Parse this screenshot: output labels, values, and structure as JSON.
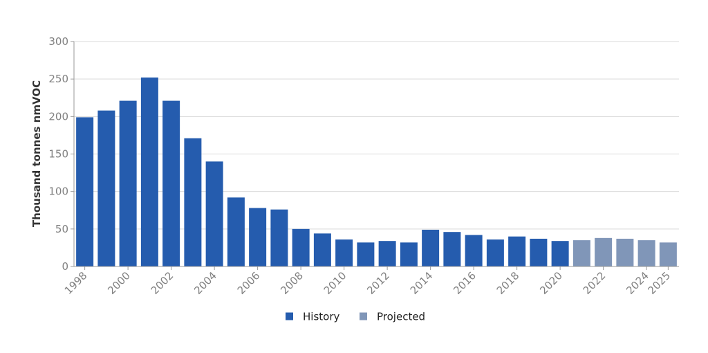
{
  "chart_data": {
    "type": "bar",
    "categories": [
      "1998",
      "1999",
      "2000",
      "2001",
      "2002",
      "2003",
      "2004",
      "2005",
      "2006",
      "2007",
      "2008",
      "2009",
      "2010",
      "2011",
      "2012",
      "2013",
      "2014",
      "2015",
      "2016",
      "2017",
      "2018",
      "2019",
      "2020",
      "2021",
      "2022",
      "2023",
      "2024",
      "2025"
    ],
    "x_tick_labels": [
      "1998",
      "2000",
      "2002",
      "2004",
      "2006",
      "2008",
      "2010",
      "2012",
      "2014",
      "2016",
      "2018",
      "2020",
      "2022",
      "2024",
      "2025"
    ],
    "series": [
      {
        "name": "History",
        "color": "#255CAE",
        "values": [
          199,
          208,
          221,
          252,
          221,
          171,
          140,
          92,
          78,
          76,
          50,
          44,
          36,
          32,
          34,
          32,
          49,
          46,
          42,
          36,
          40,
          37,
          34,
          null,
          null,
          null,
          null,
          null
        ]
      },
      {
        "name": "Projected",
        "color": "#8096B8",
        "values": [
          null,
          null,
          null,
          null,
          null,
          null,
          null,
          null,
          null,
          null,
          null,
          null,
          null,
          null,
          null,
          null,
          null,
          null,
          null,
          null,
          null,
          null,
          null,
          35,
          38,
          37,
          35,
          32
        ]
      }
    ],
    "ylabel": "Thousand tonnes nmVOC",
    "xlabel": "",
    "ylim": [
      0,
      300
    ],
    "y_ticks": [
      0,
      50,
      100,
      150,
      200,
      250,
      300
    ],
    "grid": true,
    "legend_position": "bottom-center"
  }
}
